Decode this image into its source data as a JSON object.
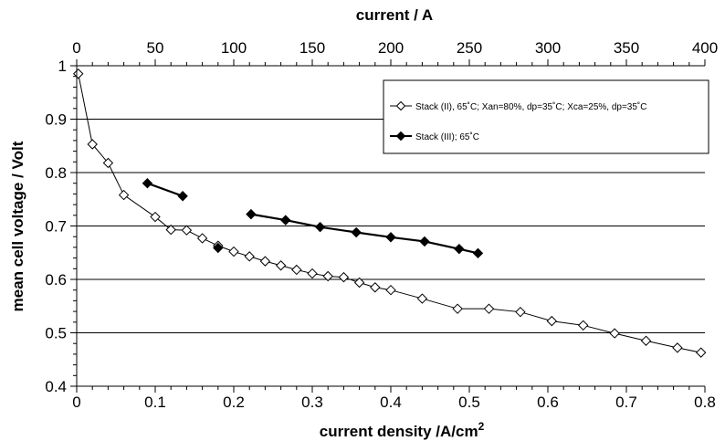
{
  "chart_data": {
    "type": "line",
    "xlabel": "current density /A/cm",
    "xlabel_sup": "2",
    "ylabel": "mean cell voltage / Volt",
    "x2label": "current / A",
    "xlim": [
      0,
      0.8
    ],
    "ylim": [
      0.4,
      1.0
    ],
    "x2lim": [
      0,
      400
    ],
    "x_ticks": [
      0,
      0.1,
      0.2,
      0.3,
      0.4,
      0.5,
      0.6,
      0.7,
      0.8
    ],
    "x_tick_labels": [
      "0",
      "0.1",
      "0.2",
      "0.3",
      "0.4",
      "0.5",
      "0.6",
      "0.7",
      "0.8"
    ],
    "y_ticks": [
      0.4,
      0.5,
      0.6,
      0.7,
      0.8,
      0.9,
      1.0
    ],
    "y_tick_labels": [
      "0.4",
      "0.5",
      "0.6",
      "0.7",
      "0.8",
      "0.9",
      "1"
    ],
    "x2_ticks": [
      0,
      50,
      100,
      150,
      200,
      250,
      300,
      350,
      400
    ],
    "x2_tick_labels": [
      "0",
      "50",
      "100",
      "150",
      "200",
      "250",
      "300",
      "350",
      "400"
    ],
    "grid": "horizontal",
    "legend_position": "top-right",
    "series": [
      {
        "name": "Stack (II), 65˚C; Xan=80%, dp=35˚C; Xca=25%, dp=35˚C",
        "marker": "open-diamond",
        "color": "#000000",
        "x": [
          0.002,
          0.02,
          0.04,
          0.06,
          0.1,
          0.12,
          0.14,
          0.16,
          0.18,
          0.2,
          0.22,
          0.24,
          0.26,
          0.28,
          0.3,
          0.32,
          0.34,
          0.36,
          0.38,
          0.4,
          0.44,
          0.485,
          0.525,
          0.565,
          0.605,
          0.645,
          0.685,
          0.725,
          0.765,
          0.795
        ],
        "y": [
          0.985,
          0.853,
          0.818,
          0.758,
          0.717,
          0.693,
          0.692,
          0.677,
          0.663,
          0.652,
          0.643,
          0.634,
          0.626,
          0.618,
          0.611,
          0.606,
          0.604,
          0.594,
          0.585,
          0.58,
          0.564,
          0.545,
          0.545,
          0.539,
          0.522,
          0.514,
          0.499,
          0.485,
          0.472,
          0.463
        ]
      },
      {
        "name": "Stack (III); 65˚C",
        "marker": "filled-diamond",
        "color": "#000000",
        "segments": [
          {
            "x": [
              0.09,
              0.135
            ],
            "y": [
              0.78,
              0.756
            ]
          },
          {
            "x": [
              0.18
            ],
            "y": [
              0.659
            ]
          },
          {
            "x": [
              0.222,
              0.266,
              0.31,
              0.356,
              0.4,
              0.443,
              0.487,
              0.511
            ],
            "y": [
              0.722,
              0.711,
              0.698,
              0.688,
              0.679,
              0.671,
              0.657,
              0.649
            ]
          }
        ]
      }
    ]
  }
}
